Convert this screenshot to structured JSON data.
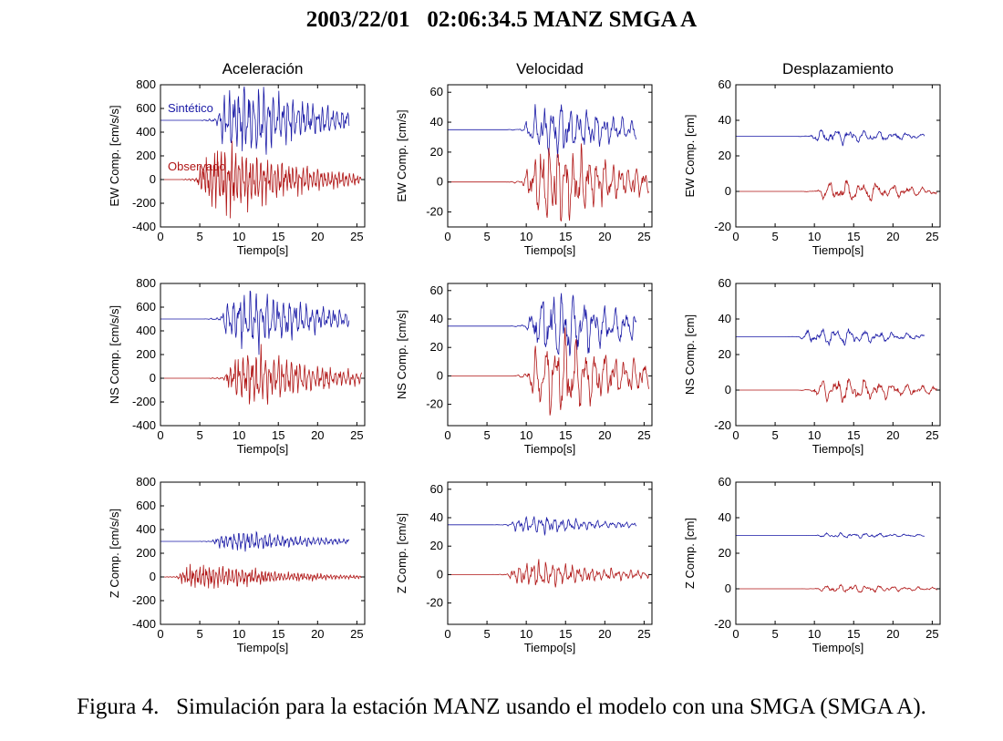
{
  "title": "2003/22/01   02:06:34.5 MANZ SMGA A",
  "caption": "Figura 4.   Simulación para la estación MANZ usando el modelo con una SMGA (SMGA A).",
  "colors": {
    "synthetic": "#1a1aa6",
    "observed": "#b01515",
    "axes": "#000000"
  },
  "chart_data": [
    {
      "type": "line",
      "column_title": "Aceleración",
      "ylabel": "EW Comp. [cm/s/s]",
      "xlabel": "Tiempo[s]",
      "xlim": [
        0,
        26
      ],
      "ylim": [
        -400,
        800
      ],
      "xticks": [
        0,
        5,
        10,
        15,
        20,
        25
      ],
      "yticks": [
        -400,
        -200,
        0,
        200,
        400,
        600,
        800
      ],
      "legend": [
        "Sintético",
        "Observado"
      ],
      "series": [
        {
          "name": "Sintético",
          "offset": 500,
          "t_end": 24.0,
          "t_onset": 7.0,
          "amplitude": 260,
          "freq": 1.6,
          "seed": 11
        },
        {
          "name": "Observado",
          "offset": 0,
          "t_end": 25.6,
          "t_onset": 4.5,
          "amplitude": 240,
          "freq": 2.2,
          "seed": 12
        }
      ]
    },
    {
      "type": "line",
      "column_title": "Velocidad",
      "ylabel": "EW Comp. [cm/s]",
      "xlabel": "Tiempo[s]",
      "xlim": [
        0,
        26
      ],
      "ylim": [
        -30,
        65
      ],
      "xticks": [
        0,
        5,
        10,
        15,
        20,
        25
      ],
      "yticks": [
        -20,
        0,
        20,
        40,
        60
      ],
      "series": [
        {
          "name": "Sintético",
          "offset": 35,
          "t_end": 24.0,
          "t_onset": 9.5,
          "amplitude": 14,
          "freq": 0.9,
          "seed": 21
        },
        {
          "name": "Observado",
          "offset": 0,
          "t_end": 25.6,
          "t_onset": 9.5,
          "amplitude": 22,
          "freq": 1.0,
          "seed": 22
        }
      ]
    },
    {
      "type": "line",
      "column_title": "Desplazamiento",
      "ylabel": "EW Comp. [cm]",
      "xlabel": "Tiempo[s]",
      "xlim": [
        0,
        26
      ],
      "ylim": [
        -20,
        60
      ],
      "xticks": [
        0,
        5,
        10,
        15,
        20,
        25
      ],
      "yticks": [
        -20,
        0,
        20,
        40,
        60
      ],
      "series": [
        {
          "name": "Sintético",
          "offset": 31,
          "t_end": 24.0,
          "t_onset": 9.0,
          "amplitude": 3.5,
          "freq": 0.55,
          "seed": 31
        },
        {
          "name": "Observado",
          "offset": 0,
          "t_end": 25.6,
          "t_onset": 10.0,
          "amplitude": 5,
          "freq": 0.5,
          "seed": 32
        }
      ]
    },
    {
      "type": "line",
      "column_title": "",
      "ylabel": "NS Comp. [cm/s/s]",
      "xlabel": "Tiempo[s]",
      "xlim": [
        0,
        26
      ],
      "ylim": [
        -400,
        800
      ],
      "xticks": [
        0,
        5,
        10,
        15,
        20,
        25
      ],
      "yticks": [
        -400,
        -200,
        0,
        200,
        400,
        600,
        800
      ],
      "series": [
        {
          "name": "Sintético",
          "offset": 500,
          "t_end": 24.0,
          "t_onset": 7.5,
          "amplitude": 200,
          "freq": 1.4,
          "seed": 41
        },
        {
          "name": "Observado",
          "offset": 0,
          "t_end": 25.6,
          "t_onset": 8.0,
          "amplitude": 190,
          "freq": 1.8,
          "seed": 42
        }
      ]
    },
    {
      "type": "line",
      "column_title": "",
      "ylabel": "NS Comp. [cm/s]",
      "xlabel": "Tiempo[s]",
      "xlim": [
        0,
        26
      ],
      "ylim": [
        -35,
        65
      ],
      "xticks": [
        0,
        5,
        10,
        15,
        20,
        25
      ],
      "yticks": [
        -20,
        0,
        20,
        40,
        60
      ],
      "series": [
        {
          "name": "Sintético",
          "offset": 35,
          "t_end": 24.0,
          "t_onset": 10.0,
          "amplitude": 20,
          "freq": 0.75,
          "seed": 51
        },
        {
          "name": "Observado",
          "offset": 0,
          "t_end": 25.6,
          "t_onset": 10.0,
          "amplitude": 24,
          "freq": 0.8,
          "seed": 52
        }
      ]
    },
    {
      "type": "line",
      "column_title": "",
      "ylabel": "NS Comp. [cm]",
      "xlabel": "Tiempo[s]",
      "xlim": [
        0,
        26
      ],
      "ylim": [
        -20,
        60
      ],
      "xticks": [
        0,
        5,
        10,
        15,
        20,
        25
      ],
      "yticks": [
        -20,
        0,
        20,
        40,
        60
      ],
      "series": [
        {
          "name": "Sintético",
          "offset": 30,
          "t_end": 24.0,
          "t_onset": 8.0,
          "amplitude": 4,
          "freq": 0.55,
          "seed": 61
        },
        {
          "name": "Observado",
          "offset": 0,
          "t_end": 25.6,
          "t_onset": 9.5,
          "amplitude": 6,
          "freq": 0.55,
          "seed": 62
        }
      ]
    },
    {
      "type": "line",
      "column_title": "",
      "ylabel": "Z Comp. [cm/s/s]",
      "xlabel": "Tiempo[s]",
      "xlim": [
        0,
        26
      ],
      "ylim": [
        -400,
        800
      ],
      "xticks": [
        0,
        5,
        10,
        15,
        20,
        25
      ],
      "yticks": [
        -400,
        -200,
        0,
        200,
        400,
        600,
        800
      ],
      "series": [
        {
          "name": "Sintético",
          "offset": 300,
          "t_end": 24.0,
          "t_onset": 6.5,
          "amplitude": 70,
          "freq": 1.8,
          "seed": 71
        },
        {
          "name": "Observado",
          "offset": 0,
          "t_end": 25.6,
          "t_onset": 2.0,
          "amplitude": 95,
          "freq": 2.4,
          "seed": 72
        }
      ]
    },
    {
      "type": "line",
      "column_title": "",
      "ylabel": "Z Comp. [cm/s]",
      "xlabel": "Tiempo[s]",
      "xlim": [
        0,
        26
      ],
      "ylim": [
        -35,
        65
      ],
      "xticks": [
        0,
        5,
        10,
        15,
        20,
        25
      ],
      "yticks": [
        -20,
        0,
        20,
        40,
        60
      ],
      "series": [
        {
          "name": "Sintético",
          "offset": 35,
          "t_end": 24.0,
          "t_onset": 7.5,
          "amplitude": 5,
          "freq": 1.1,
          "seed": 81
        },
        {
          "name": "Observado",
          "offset": 0,
          "t_end": 25.6,
          "t_onset": 7.5,
          "amplitude": 8,
          "freq": 1.2,
          "seed": 82
        }
      ]
    },
    {
      "type": "line",
      "column_title": "",
      "ylabel": "Z Comp. [cm]",
      "xlabel": "Tiempo[s]",
      "xlim": [
        0,
        26
      ],
      "ylim": [
        -20,
        60
      ],
      "xticks": [
        0,
        5,
        10,
        15,
        20,
        25
      ],
      "yticks": [
        -20,
        0,
        20,
        40,
        60
      ],
      "series": [
        {
          "name": "Sintético",
          "offset": 30,
          "t_end": 24.0,
          "t_onset": 10.0,
          "amplitude": 1.2,
          "freq": 0.6,
          "seed": 91
        },
        {
          "name": "Observado",
          "offset": 0,
          "t_end": 25.6,
          "t_onset": 10.0,
          "amplitude": 2,
          "freq": 0.6,
          "seed": 92
        }
      ]
    }
  ]
}
